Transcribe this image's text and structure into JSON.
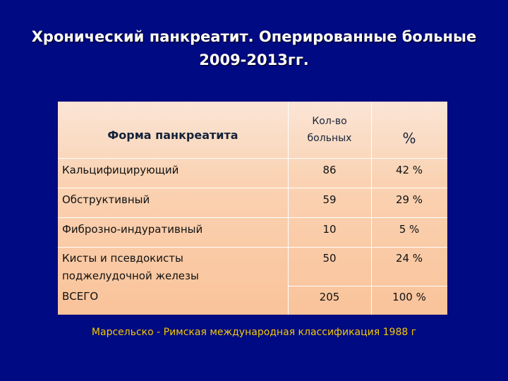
{
  "title": {
    "line1": "Хронический панкреатит. Оперированные больные",
    "line2": "2009-2013гг."
  },
  "table": {
    "headers": {
      "form": "Форма панкреатита",
      "count_line1": "Кол-во",
      "count_line2": "больных",
      "percent": "%"
    },
    "rows": [
      {
        "name": "Кальцифицирующий",
        "count": "86",
        "percent": "42 %"
      },
      {
        "name": "Обструктивный",
        "count": "59",
        "percent": "29 %"
      },
      {
        "name": "Фиброзно-индуративный",
        "count": "10",
        "percent": "5 %"
      },
      {
        "name_line1": "Кисты и псевдокисты",
        "name_line2": "поджелудочной железы",
        "count": "50",
        "percent": "24 %"
      },
      {
        "name": "ВСЕГО",
        "count": "205",
        "percent": "100 %"
      }
    ]
  },
  "footnote": "Марсельско - Римская международная классификация 1988 г",
  "colors": {
    "background": "#000a82",
    "table_fill": "#fad3b4",
    "footnote": "#f2c900",
    "title": "#ffffff"
  }
}
